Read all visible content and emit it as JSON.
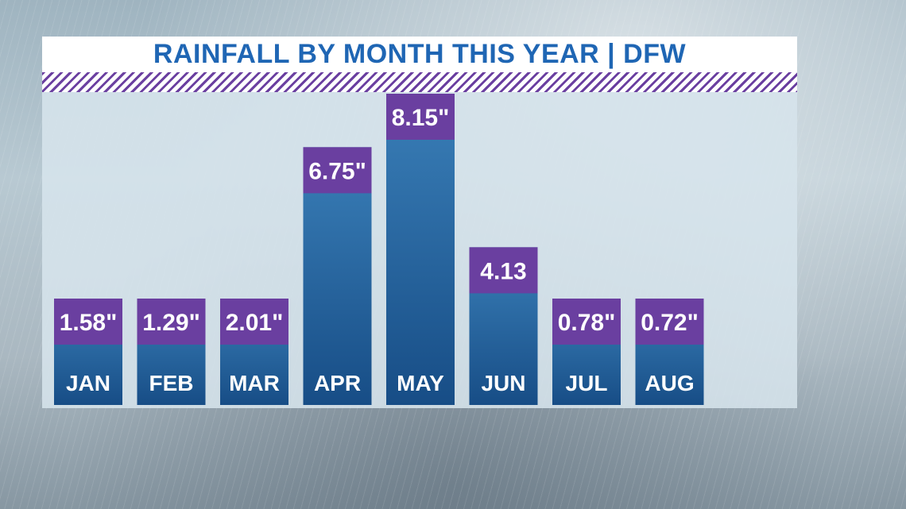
{
  "chart_data": {
    "type": "bar",
    "title": "RAINFALL BY MONTH THIS YEAR | DFW",
    "categories": [
      "JAN",
      "FEB",
      "MAR",
      "APR",
      "MAY",
      "JUN",
      "JUL",
      "AUG"
    ],
    "values": [
      1.58,
      1.29,
      2.01,
      6.75,
      8.15,
      4.13,
      0.78,
      0.72
    ],
    "value_labels": [
      "1.58\"",
      "1.29\"",
      "2.01\"",
      "6.75\"",
      "8.15\"",
      "4.13",
      "0.78\"",
      "0.72\""
    ],
    "xlabel": "",
    "ylabel": "",
    "ylim": [
      0,
      8.15
    ],
    "grid": false,
    "legend": "none",
    "colors": {
      "bar_top": "#3a7fb8",
      "bar_bottom": "#174d86",
      "label_box": "#6a3fa0",
      "title_text": "#1f66b4"
    }
  }
}
